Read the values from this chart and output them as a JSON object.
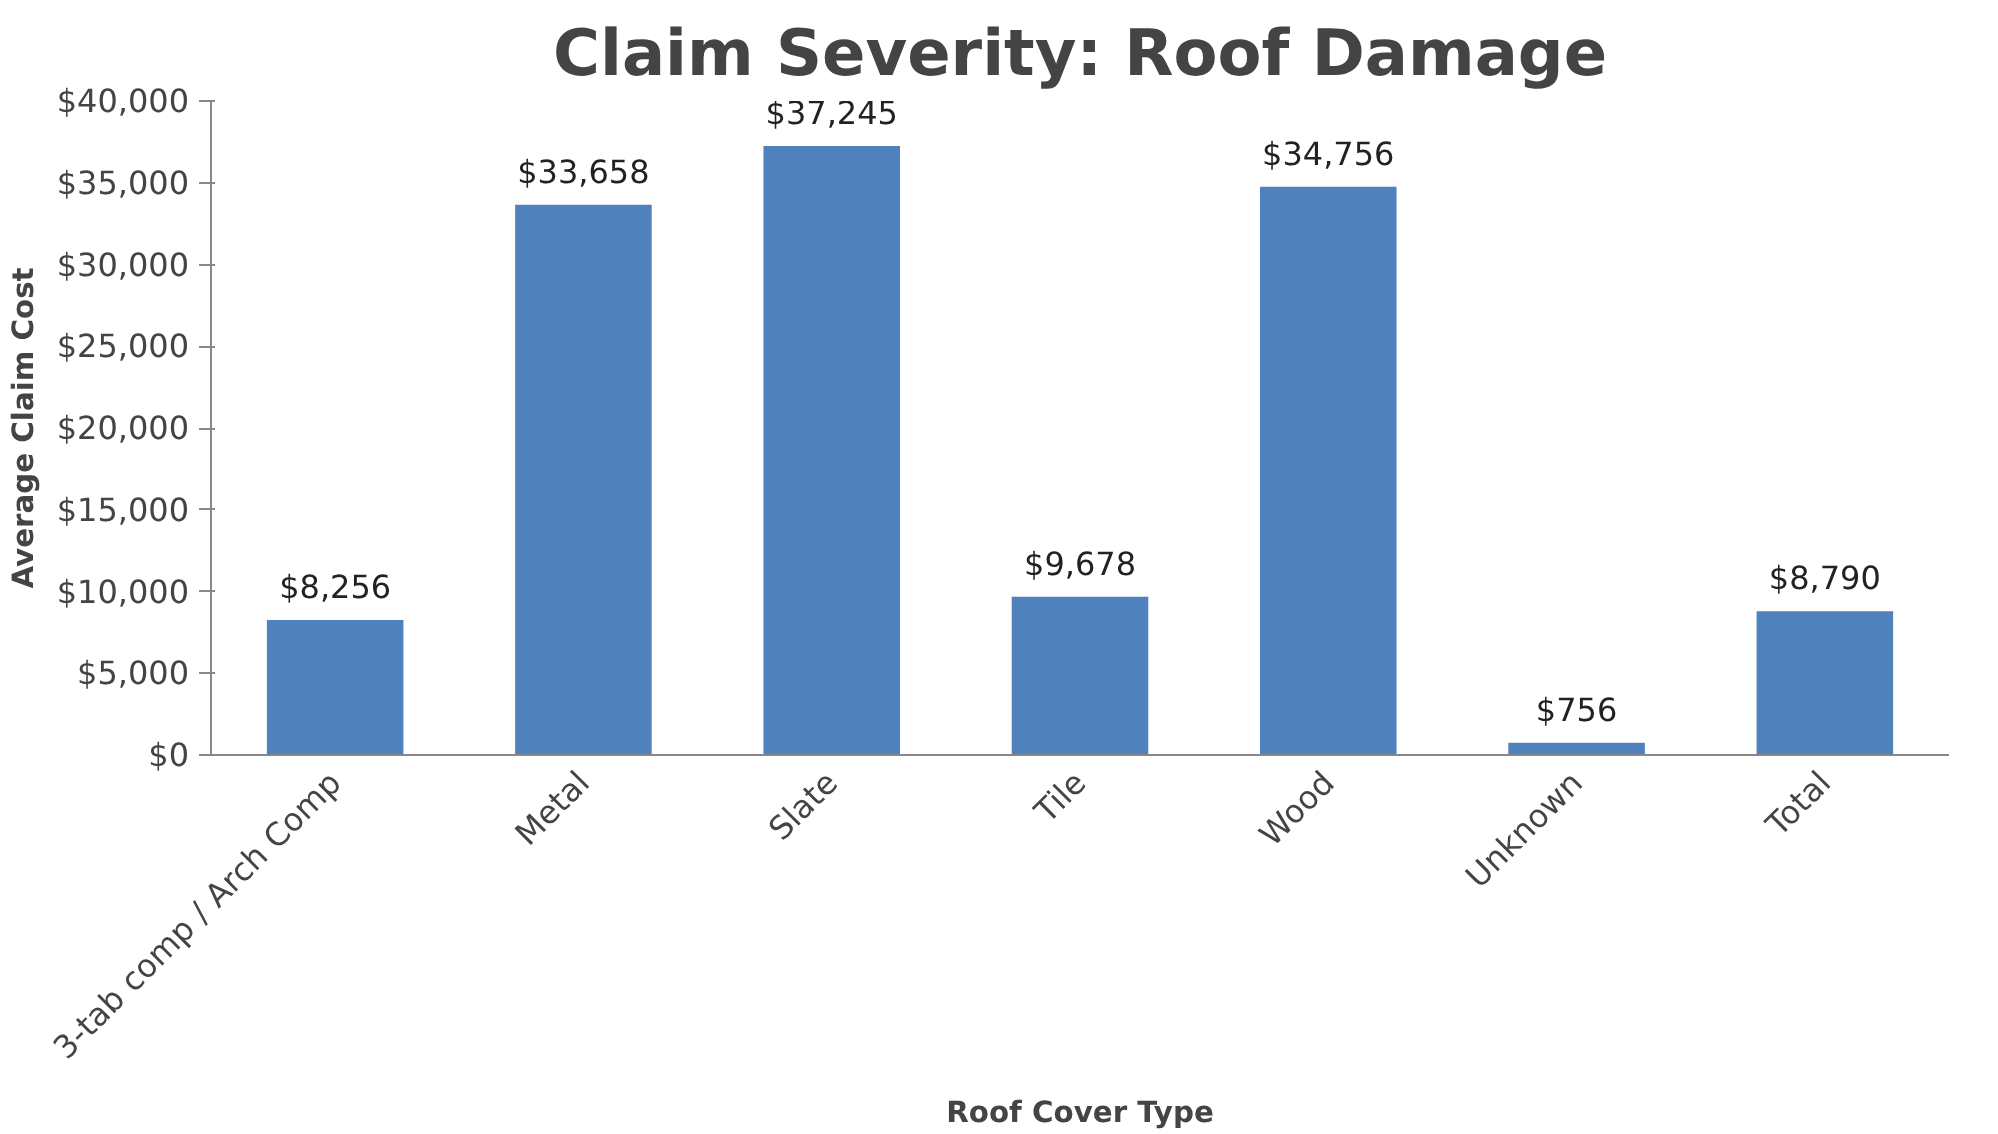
{
  "chart_data": {
    "type": "bar",
    "title": "Claim Severity: Roof Damage",
    "xlabel": "Roof Cover Type",
    "ylabel": "Average Claim Cost",
    "categories": [
      "3-tab comp / Arch Comp",
      "Metal",
      "Slate",
      "Tile",
      "Wood",
      "Unknown",
      "Total"
    ],
    "values": [
      8256,
      33658,
      37245,
      9678,
      34756,
      756,
      8790
    ],
    "value_labels": [
      "$8,256",
      "$33,658",
      "$37,245",
      "$9,678",
      "$34,756",
      "$756",
      "$8,790"
    ],
    "color": "#4f81bd",
    "ylim": [
      0,
      40000
    ],
    "yticks": [
      {
        "value": 0,
        "label": "$0"
      },
      {
        "value": 5000,
        "label": "$5,000"
      },
      {
        "value": 10000,
        "label": "$10,000"
      },
      {
        "value": 15000,
        "label": "$15,000"
      },
      {
        "value": 20000,
        "label": "$20,000"
      },
      {
        "value": 25000,
        "label": "$25,000"
      },
      {
        "value": 30000,
        "label": "$30,000"
      },
      {
        "value": 35000,
        "label": "$35,000"
      },
      {
        "value": 40000,
        "label": "$40,000"
      }
    ],
    "grid": false
  }
}
